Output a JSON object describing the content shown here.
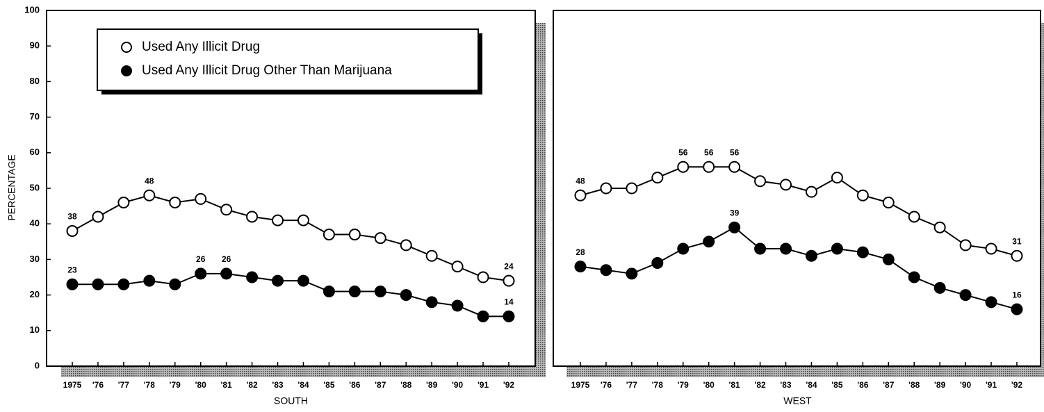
{
  "chart_data": [
    {
      "type": "line",
      "xlabel": "SOUTH",
      "ylabel": "PERCENTAGE",
      "categories": [
        "1975",
        "'76",
        "'77",
        "'78",
        "'79",
        "'80",
        "'81",
        "'82",
        "'83",
        "'84",
        "'85",
        "'86",
        "'87",
        "'88",
        "'89",
        "'90",
        "'91",
        "'92"
      ],
      "ylim": [
        0,
        100
      ],
      "yticks": [
        0,
        10,
        20,
        30,
        40,
        50,
        60,
        70,
        80,
        90,
        100
      ],
      "legend": "top-left",
      "series": [
        {
          "name": "Used Any Illicit Drug",
          "color": "#000000",
          "marker": "open",
          "labeled": [
            0,
            3,
            17
          ],
          "values": [
            38,
            42,
            46,
            48,
            46,
            47,
            44,
            42,
            41,
            41,
            37,
            37,
            36,
            34,
            31,
            28,
            25,
            24
          ]
        },
        {
          "name": "Used Any Illicit Drug Other Than Marijuana",
          "color": "#000000",
          "marker": "filled",
          "labeled": [
            0,
            5,
            6,
            17
          ],
          "values": [
            23,
            23,
            23,
            24,
            23,
            26,
            26,
            25,
            24,
            24,
            21,
            21,
            21,
            20,
            18,
            17,
            14,
            14
          ]
        }
      ]
    },
    {
      "type": "line",
      "xlabel": "WEST",
      "categories": [
        "1975",
        "'76",
        "'77",
        "'78",
        "'79",
        "'80",
        "'81",
        "'82",
        "'83",
        "'84",
        "'85",
        "'86",
        "'87",
        "'88",
        "'89",
        "'90",
        "'91",
        "'92"
      ],
      "ylim": [
        0,
        100
      ],
      "series": [
        {
          "color": "#000000",
          "marker": "open",
          "labeled": [
            0,
            4,
            5,
            6,
            17
          ],
          "values": [
            48,
            50,
            50,
            53,
            56,
            56,
            56,
            52,
            51,
            49,
            53,
            48,
            46,
            42,
            39,
            34,
            33,
            31
          ]
        },
        {
          "color": "#000000",
          "marker": "filled",
          "labeled": [
            0,
            6,
            17
          ],
          "values": [
            28,
            27,
            26,
            29,
            33,
            35,
            39,
            33,
            33,
            31,
            33,
            32,
            30,
            25,
            22,
            20,
            18,
            16
          ]
        }
      ]
    }
  ]
}
